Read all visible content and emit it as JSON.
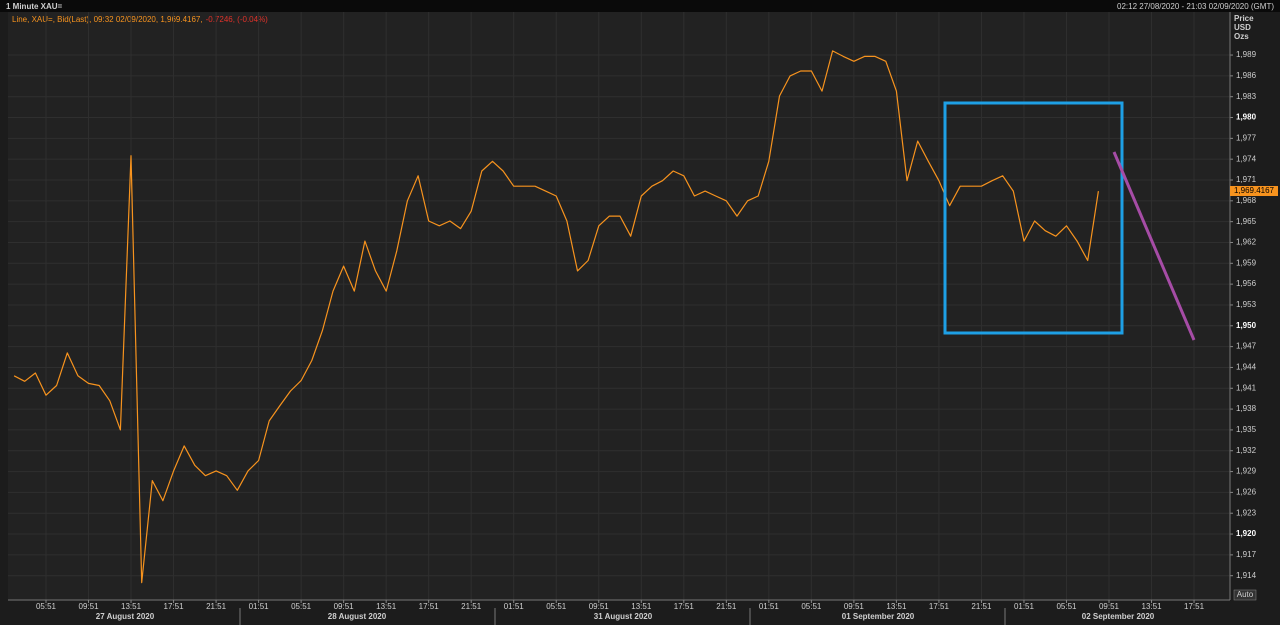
{
  "header": {
    "title": "1 Minute XAU=",
    "range": "02:12 27/08/2020 - 21:03 02/09/2020 (GMT)"
  },
  "chart_data": {
    "type": "line",
    "legend": {
      "text": "Line, XAU=, Bid(Last), 09:32 02/09/2020, 1,969.4167,",
      "change": "-0.7246, (-0.04%)"
    },
    "axis_label": [
      "Price",
      "USD",
      "Ozs"
    ],
    "categories": [
      null,
      null,
      null,
      "05:51",
      null,
      null,
      null,
      "09:51",
      null,
      null,
      null,
      "13:51",
      null,
      null,
      null,
      "17:51",
      null,
      null,
      null,
      "21:51",
      null,
      null,
      null,
      "01:51",
      null,
      null,
      null,
      "05:51",
      null,
      null,
      null,
      "09:51",
      null,
      null,
      null,
      "13:51",
      null,
      null,
      null,
      "17:51",
      null,
      null,
      null,
      "21:51",
      null,
      null,
      null,
      "01:51",
      null,
      null,
      null,
      "05:51",
      null,
      null,
      null,
      "09:51",
      null,
      null,
      null,
      "13:51",
      null,
      null,
      null,
      "17:51",
      null,
      null,
      null,
      "21:51",
      null,
      null,
      null,
      "01:51",
      null,
      null,
      null,
      "05:51",
      null,
      null,
      null,
      "09:51",
      null,
      null,
      null,
      "13:51",
      null,
      null,
      null,
      "17:51",
      null,
      null,
      null,
      "21:51",
      null,
      null,
      null,
      "01:51",
      null,
      null,
      null,
      "05:51",
      null,
      null,
      null,
      "09:51",
      null,
      null,
      null,
      "13:51",
      null,
      null,
      null,
      "17:51"
    ],
    "days": [
      "27 August 2020",
      "28 August 2020",
      "31 August 2020",
      "01 September 2020",
      "02 September 2020"
    ],
    "series": [
      {
        "color": "#f7931e",
        "values": [
          1942.8,
          1942,
          1943.2,
          1940,
          1941.4,
          1946.1,
          1942.8,
          1941.7,
          1941.4,
          1939.2,
          1935,
          1974.5,
          1913,
          1927.7,
          1924.8,
          1929.1,
          1932.7,
          1929.9,
          1928.4,
          1929.1,
          1928.4,
          1926.3,
          1929.1,
          1930.6,
          1936.3,
          1938.5,
          1940.6,
          1942.1,
          1945,
          1949.3,
          1955,
          1958.6,
          1955,
          1962.2,
          1957.9,
          1955,
          1960.8,
          1968,
          1971.6,
          1965.1,
          1964.4,
          1965.1,
          1964,
          1966.5,
          1972.3,
          1973.7,
          1972.3,
          1970.1,
          1970.1,
          1970.1,
          1969.4,
          1968.7,
          1965.1,
          1957.9,
          1959.4,
          1964.4,
          1965.8,
          1965.8,
          1962.9,
          1968.7,
          1970.1,
          1970.9,
          1972.3,
          1971.6,
          1968.7,
          1969.4,
          1968.7,
          1968,
          1965.8,
          1968,
          1968.7,
          1973.7,
          1983.1,
          1986,
          1986.7,
          1986.7,
          1983.8,
          1989.6,
          1988.8,
          1988.1,
          1988.8,
          1988.8,
          1988.1,
          1983.8,
          1970.9,
          1976.6,
          1973.7,
          1970.9,
          1967.3,
          1970.1,
          1970.1,
          1970.1,
          1970.9,
          1971.6,
          1969.4,
          1962.2,
          1965.1,
          1963.7,
          1962.9,
          1964.4,
          1962.2,
          1959.4,
          1969.4,
          null,
          null,
          null,
          null,
          null,
          null,
          null,
          null,
          null
        ]
      }
    ],
    "last_price": {
      "value": 1969.4167,
      "label": "1,969.4167"
    },
    "ylim": [
      1910.5,
      1995.2
    ],
    "yticks": [
      {
        "value": 1914,
        "label": "1,914"
      },
      {
        "value": 1917,
        "label": "1,917"
      },
      {
        "value": 1920,
        "label": "1,920"
      },
      {
        "value": 1923,
        "label": "1,923"
      },
      {
        "value": 1926,
        "label": "1,926"
      },
      {
        "value": 1929,
        "label": "1,929"
      },
      {
        "value": 1932,
        "label": "1,932"
      },
      {
        "value": 1935,
        "label": "1,935"
      },
      {
        "value": 1938,
        "label": "1,938"
      },
      {
        "value": 1941,
        "label": "1,941"
      },
      {
        "value": 1944,
        "label": "1,944"
      },
      {
        "value": 1947,
        "label": "1,947"
      },
      {
        "value": 1950,
        "label": "1,950"
      },
      {
        "value": 1953,
        "label": "1,953"
      },
      {
        "value": 1956,
        "label": "1,956"
      },
      {
        "value": 1959,
        "label": "1,959"
      },
      {
        "value": 1962,
        "label": "1,962"
      },
      {
        "value": 1965,
        "label": "1,965"
      },
      {
        "value": 1968,
        "label": "1,968"
      },
      {
        "value": 1971,
        "label": "1,971"
      },
      {
        "value": 1974,
        "label": "1,974"
      },
      {
        "value": 1977,
        "label": "1,977"
      },
      {
        "value": 1980,
        "label": "1,980"
      },
      {
        "value": 1983,
        "label": "1,983"
      },
      {
        "value": 1986,
        "label": "1,986"
      },
      {
        "value": 1989,
        "label": "1,989"
      }
    ],
    "grid": true,
    "auto_label": "Auto"
  }
}
